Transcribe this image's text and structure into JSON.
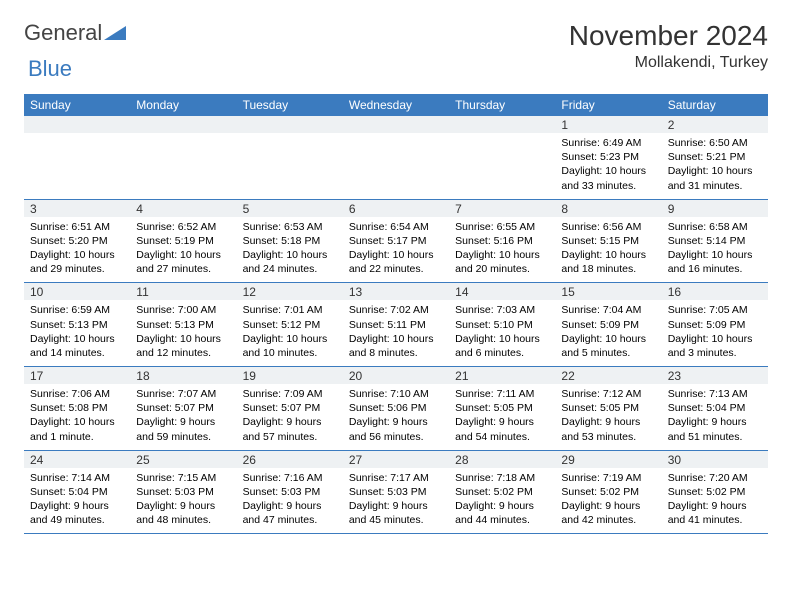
{
  "brand": {
    "part1": "General",
    "part2": "Blue"
  },
  "title": "November 2024",
  "location": "Mollakendi, Turkey",
  "colors": {
    "header_bg": "#3b7bbf",
    "header_text": "#ffffff",
    "row_band": "#eef1f3",
    "border": "#3b7bbf",
    "text": "#000000"
  },
  "day_names": [
    "Sunday",
    "Monday",
    "Tuesday",
    "Wednesday",
    "Thursday",
    "Friday",
    "Saturday"
  ],
  "weeks": [
    [
      null,
      null,
      null,
      null,
      null,
      {
        "n": "1",
        "sr": "Sunrise: 6:49 AM",
        "ss": "Sunset: 5:23 PM",
        "dl": "Daylight: 10 hours and 33 minutes."
      },
      {
        "n": "2",
        "sr": "Sunrise: 6:50 AM",
        "ss": "Sunset: 5:21 PM",
        "dl": "Daylight: 10 hours and 31 minutes."
      }
    ],
    [
      {
        "n": "3",
        "sr": "Sunrise: 6:51 AM",
        "ss": "Sunset: 5:20 PM",
        "dl": "Daylight: 10 hours and 29 minutes."
      },
      {
        "n": "4",
        "sr": "Sunrise: 6:52 AM",
        "ss": "Sunset: 5:19 PM",
        "dl": "Daylight: 10 hours and 27 minutes."
      },
      {
        "n": "5",
        "sr": "Sunrise: 6:53 AM",
        "ss": "Sunset: 5:18 PM",
        "dl": "Daylight: 10 hours and 24 minutes."
      },
      {
        "n": "6",
        "sr": "Sunrise: 6:54 AM",
        "ss": "Sunset: 5:17 PM",
        "dl": "Daylight: 10 hours and 22 minutes."
      },
      {
        "n": "7",
        "sr": "Sunrise: 6:55 AM",
        "ss": "Sunset: 5:16 PM",
        "dl": "Daylight: 10 hours and 20 minutes."
      },
      {
        "n": "8",
        "sr": "Sunrise: 6:56 AM",
        "ss": "Sunset: 5:15 PM",
        "dl": "Daylight: 10 hours and 18 minutes."
      },
      {
        "n": "9",
        "sr": "Sunrise: 6:58 AM",
        "ss": "Sunset: 5:14 PM",
        "dl": "Daylight: 10 hours and 16 minutes."
      }
    ],
    [
      {
        "n": "10",
        "sr": "Sunrise: 6:59 AM",
        "ss": "Sunset: 5:13 PM",
        "dl": "Daylight: 10 hours and 14 minutes."
      },
      {
        "n": "11",
        "sr": "Sunrise: 7:00 AM",
        "ss": "Sunset: 5:13 PM",
        "dl": "Daylight: 10 hours and 12 minutes."
      },
      {
        "n": "12",
        "sr": "Sunrise: 7:01 AM",
        "ss": "Sunset: 5:12 PM",
        "dl": "Daylight: 10 hours and 10 minutes."
      },
      {
        "n": "13",
        "sr": "Sunrise: 7:02 AM",
        "ss": "Sunset: 5:11 PM",
        "dl": "Daylight: 10 hours and 8 minutes."
      },
      {
        "n": "14",
        "sr": "Sunrise: 7:03 AM",
        "ss": "Sunset: 5:10 PM",
        "dl": "Daylight: 10 hours and 6 minutes."
      },
      {
        "n": "15",
        "sr": "Sunrise: 7:04 AM",
        "ss": "Sunset: 5:09 PM",
        "dl": "Daylight: 10 hours and 5 minutes."
      },
      {
        "n": "16",
        "sr": "Sunrise: 7:05 AM",
        "ss": "Sunset: 5:09 PM",
        "dl": "Daylight: 10 hours and 3 minutes."
      }
    ],
    [
      {
        "n": "17",
        "sr": "Sunrise: 7:06 AM",
        "ss": "Sunset: 5:08 PM",
        "dl": "Daylight: 10 hours and 1 minute."
      },
      {
        "n": "18",
        "sr": "Sunrise: 7:07 AM",
        "ss": "Sunset: 5:07 PM",
        "dl": "Daylight: 9 hours and 59 minutes."
      },
      {
        "n": "19",
        "sr": "Sunrise: 7:09 AM",
        "ss": "Sunset: 5:07 PM",
        "dl": "Daylight: 9 hours and 57 minutes."
      },
      {
        "n": "20",
        "sr": "Sunrise: 7:10 AM",
        "ss": "Sunset: 5:06 PM",
        "dl": "Daylight: 9 hours and 56 minutes."
      },
      {
        "n": "21",
        "sr": "Sunrise: 7:11 AM",
        "ss": "Sunset: 5:05 PM",
        "dl": "Daylight: 9 hours and 54 minutes."
      },
      {
        "n": "22",
        "sr": "Sunrise: 7:12 AM",
        "ss": "Sunset: 5:05 PM",
        "dl": "Daylight: 9 hours and 53 minutes."
      },
      {
        "n": "23",
        "sr": "Sunrise: 7:13 AM",
        "ss": "Sunset: 5:04 PM",
        "dl": "Daylight: 9 hours and 51 minutes."
      }
    ],
    [
      {
        "n": "24",
        "sr": "Sunrise: 7:14 AM",
        "ss": "Sunset: 5:04 PM",
        "dl": "Daylight: 9 hours and 49 minutes."
      },
      {
        "n": "25",
        "sr": "Sunrise: 7:15 AM",
        "ss": "Sunset: 5:03 PM",
        "dl": "Daylight: 9 hours and 48 minutes."
      },
      {
        "n": "26",
        "sr": "Sunrise: 7:16 AM",
        "ss": "Sunset: 5:03 PM",
        "dl": "Daylight: 9 hours and 47 minutes."
      },
      {
        "n": "27",
        "sr": "Sunrise: 7:17 AM",
        "ss": "Sunset: 5:03 PM",
        "dl": "Daylight: 9 hours and 45 minutes."
      },
      {
        "n": "28",
        "sr": "Sunrise: 7:18 AM",
        "ss": "Sunset: 5:02 PM",
        "dl": "Daylight: 9 hours and 44 minutes."
      },
      {
        "n": "29",
        "sr": "Sunrise: 7:19 AM",
        "ss": "Sunset: 5:02 PM",
        "dl": "Daylight: 9 hours and 42 minutes."
      },
      {
        "n": "30",
        "sr": "Sunrise: 7:20 AM",
        "ss": "Sunset: 5:02 PM",
        "dl": "Daylight: 9 hours and 41 minutes."
      }
    ]
  ]
}
